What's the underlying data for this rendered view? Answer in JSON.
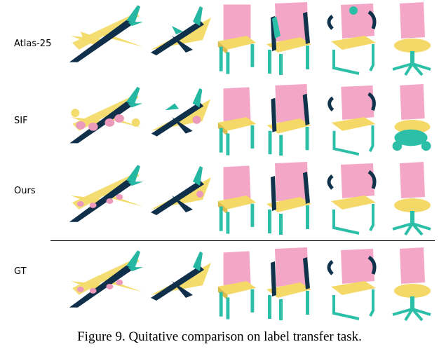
{
  "figure": {
    "rows": [
      {
        "label": "Atlas-25",
        "variant": "atlas"
      },
      {
        "label": "SIF",
        "variant": "sif"
      },
      {
        "label": "Ours",
        "variant": "ours"
      },
      {
        "label": "GT",
        "variant": "gt"
      }
    ],
    "shapes": [
      "airliner",
      "fighter-jet",
      "chair",
      "armchair",
      "cantilever-chair",
      "office-chair"
    ],
    "colors": {
      "body": "#0f2f4a",
      "wing": "#f3dc6b",
      "tail": "#25b7a1",
      "engine": "#ec9abb",
      "seat": "#f5d968",
      "back": "#f4a6c6",
      "leg": "#2cbfa8",
      "arm": "#10324b"
    },
    "caption": "Figure 9. Quitative comparison on label transfer task."
  }
}
